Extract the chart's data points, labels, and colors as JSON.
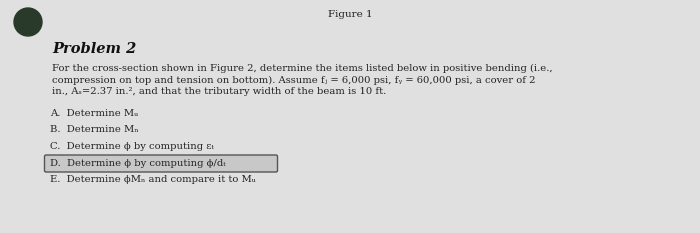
{
  "title": "Figure 1",
  "background_color": "#e0e0e0",
  "problem_heading": "Problem 2",
  "para_line1": "For the cross-section shown in Figure 2, determine the items listed below in positive bending (i.e.,",
  "para_line2": "compression on top and tension on bottom). Assume fⱼ = 6,000 psi, fᵧ = 60,000 psi, a cover of 2",
  "para_line3": "in., Aₛ=2.37 in.², and that the tributary width of the beam is 10 ft.",
  "items": [
    "A.  Determine Mᵤ",
    "B.  Determine Mₙ",
    "C.  Determine ϕ by computing εₜ",
    "D.  Determine ϕ by computing ϕ/dₜ",
    "E.  Determine ϕMₙ and compare it to Mᵤ"
  ],
  "highlight_item_index": 3,
  "circle_color": "#2a3a2a",
  "title_fontsize": 7.5,
  "heading_fontsize": 10.5,
  "para_fontsize": 7.2,
  "item_fontsize": 7.2
}
